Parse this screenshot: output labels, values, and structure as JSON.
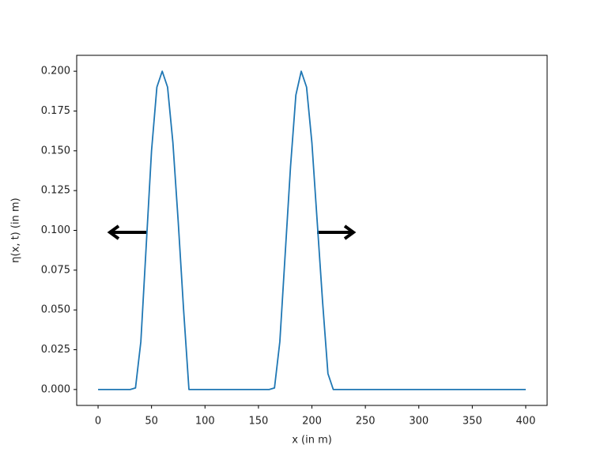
{
  "chart_data": {
    "type": "line",
    "xlabel": "x (in m)",
    "ylabel": "η(x, t) (in m)",
    "series": [
      {
        "color": "#1f77b4",
        "x": [
          0,
          30,
          35,
          40,
          45,
          50,
          55,
          60,
          65,
          70,
          75,
          80,
          85,
          90,
          95,
          100,
          150,
          160,
          165,
          170,
          175,
          180,
          185,
          190,
          195,
          200,
          205,
          210,
          215,
          220,
          400
        ],
        "values": [
          0,
          0,
          0.001,
          0.03,
          0.09,
          0.15,
          0.19,
          0.2,
          0.19,
          0.155,
          0.105,
          0.05,
          0,
          0,
          0,
          0,
          0,
          0,
          0.001,
          0.03,
          0.085,
          0.14,
          0.185,
          0.2,
          0.19,
          0.155,
          0.105,
          0.055,
          0.01,
          0,
          0
        ]
      }
    ],
    "xlim": [
      -20,
      420
    ],
    "ylim": [
      -0.01,
      0.21
    ],
    "xticks": [
      0,
      50,
      100,
      150,
      200,
      250,
      300,
      350,
      400
    ],
    "yticks": [
      {
        "value": 0,
        "label": "0.000"
      },
      {
        "value": 0.025,
        "label": "0.025"
      },
      {
        "value": 0.05,
        "label": "0.050"
      },
      {
        "value": 0.075,
        "label": "0.075"
      },
      {
        "value": 0.1,
        "label": "0.100"
      },
      {
        "value": 0.125,
        "label": "0.125"
      },
      {
        "value": 0.15,
        "label": "0.150"
      },
      {
        "value": 0.175,
        "label": "0.175"
      },
      {
        "value": 0.2,
        "label": "0.200"
      }
    ]
  }
}
